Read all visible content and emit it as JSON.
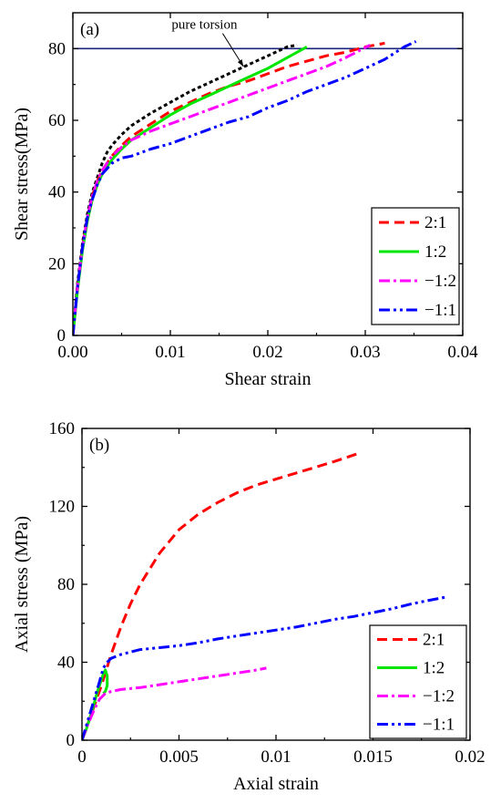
{
  "chart_data": [
    {
      "type": "line",
      "panel_label": "(a)",
      "xlabel": "Shear strain",
      "ylabel": "Shear stress(MPa)",
      "xlim": [
        0,
        0.04
      ],
      "ylim": [
        0,
        90
      ],
      "xticks": [
        0,
        0.01,
        0.02,
        0.03,
        0.04
      ],
      "xtick_labels": [
        "0.00",
        "0.01",
        "0.02",
        "0.03",
        "0.04"
      ],
      "yticks": [
        0,
        20,
        40,
        60,
        80
      ],
      "ytick_labels": [
        "0",
        "20",
        "40",
        "60",
        "80"
      ],
      "legend_position": "lower-right",
      "reference_line": {
        "y": 80,
        "color": "#1a237e"
      },
      "annotation": {
        "text": "pure torsion",
        "points_to": [
          0.0175,
          75
        ]
      },
      "series": [
        {
          "name": "",
          "legend": false,
          "color": "#000000",
          "dash": "dot",
          "x": [
            0,
            0.0005,
            0.001,
            0.0015,
            0.002,
            0.0025,
            0.003,
            0.0035,
            0.004,
            0.005,
            0.006,
            0.008,
            0.01,
            0.012,
            0.014,
            0.016,
            0.018,
            0.02,
            0.022,
            0.023
          ],
          "y": [
            0,
            15,
            26,
            34,
            40,
            44,
            48,
            51,
            53,
            56,
            58.5,
            62,
            65,
            68,
            70.5,
            73,
            75.5,
            78,
            80.5,
            81
          ]
        },
        {
          "name": "2:1",
          "color": "#ff0000",
          "dash": "dash",
          "x": [
            0,
            0.0005,
            0.001,
            0.0015,
            0.002,
            0.0025,
            0.003,
            0.004,
            0.005,
            0.006,
            0.008,
            0.01,
            0.012,
            0.014,
            0.016,
            0.018,
            0.02,
            0.022,
            0.024,
            0.026,
            0.028,
            0.03,
            0.032
          ],
          "y": [
            0,
            14,
            25,
            33,
            39,
            43,
            46,
            50,
            53,
            55.5,
            59,
            62.5,
            65,
            67.5,
            69.5,
            71,
            73,
            75,
            76.5,
            78,
            79,
            80.5,
            81.5
          ]
        },
        {
          "name": "1:2",
          "color": "#00e600",
          "dash": "solid",
          "x": [
            0,
            0.0005,
            0.001,
            0.0015,
            0.002,
            0.0025,
            0.003,
            0.004,
            0.005,
            0.006,
            0.008,
            0.01,
            0.012,
            0.014,
            0.016,
            0.018,
            0.02,
            0.022,
            0.024
          ],
          "y": [
            0,
            13,
            24,
            32,
            38,
            42,
            45,
            49,
            52,
            54.5,
            58,
            61.5,
            64.5,
            67,
            69.5,
            72,
            74.5,
            77.5,
            80.5
          ]
        },
        {
          "name": "−1:2",
          "color": "#ff00ff",
          "dash": "dashdot",
          "x": [
            0,
            0.0005,
            0.001,
            0.0015,
            0.002,
            0.0025,
            0.003,
            0.004,
            0.005,
            0.006,
            0.008,
            0.01,
            0.012,
            0.014,
            0.016,
            0.018,
            0.02,
            0.022,
            0.024,
            0.026,
            0.028,
            0.0305
          ],
          "y": [
            0,
            14,
            25,
            33,
            39,
            43,
            46,
            50,
            52.5,
            54.5,
            57,
            59,
            61,
            63,
            65,
            67,
            69,
            71,
            73,
            75,
            77.5,
            81
          ]
        },
        {
          "name": "−1:1",
          "color": "#0000ff",
          "dash": "dashdotdot",
          "x": [
            0,
            0.0005,
            0.001,
            0.0015,
            0.002,
            0.0025,
            0.003,
            0.004,
            0.005,
            0.006,
            0.008,
            0.01,
            0.012,
            0.014,
            0.016,
            0.018,
            0.02,
            0.022,
            0.024,
            0.026,
            0.028,
            0.03,
            0.032,
            0.034,
            0.0352
          ],
          "y": [
            0,
            14,
            25,
            33,
            38,
            42,
            45,
            48,
            49.5,
            50,
            52,
            53.5,
            55.5,
            57.5,
            59.5,
            61,
            63.5,
            65.5,
            68,
            70,
            72,
            74.5,
            77,
            80.5,
            82
          ]
        }
      ]
    },
    {
      "type": "line",
      "panel_label": "(b)",
      "xlabel": "Axial strain",
      "ylabel": "Axial stress (MPa)",
      "xlim": [
        0,
        0.02
      ],
      "ylim": [
        0,
        160
      ],
      "xticks": [
        0,
        0.005,
        0.01,
        0.015,
        0.02
      ],
      "xtick_labels": [
        "0",
        "0.005",
        "0.01",
        "0.015",
        "0.02"
      ],
      "yticks": [
        0,
        40,
        80,
        120,
        160
      ],
      "ytick_labels": [
        "0",
        "40",
        "80",
        "120",
        "160"
      ],
      "legend_position": "lower-right",
      "series": [
        {
          "name": "2:1",
          "color": "#ff0000",
          "dash": "dash",
          "x": [
            0,
            0.0005,
            0.001,
            0.0015,
            0.002,
            0.0025,
            0.003,
            0.004,
            0.005,
            0.006,
            0.007,
            0.008,
            0.009,
            0.01,
            0.011,
            0.012,
            0.013,
            0.0142
          ],
          "y": [
            0,
            14,
            28,
            44,
            58,
            70,
            80,
            96,
            108,
            116,
            122,
            127,
            131,
            134,
            137,
            140,
            143,
            147
          ]
        },
        {
          "name": "1:2",
          "color": "#00e600",
          "dash": "solid",
          "x": [
            0,
            0.0002,
            0.0004,
            0.0006,
            0.0008,
            0.001,
            0.0011,
            0.0012,
            0.0013,
            0.0013,
            0.0012,
            0.0011
          ],
          "y": [
            0,
            5,
            11,
            18,
            25,
            31,
            34,
            36,
            33,
            28,
            25,
            24
          ]
        },
        {
          "name": "−1:2",
          "color": "#ff00ff",
          "dash": "dashdot",
          "x": [
            0,
            0.0003,
            0.0006,
            0.0009,
            0.0012,
            0.0015,
            0.002,
            0.003,
            0.004,
            0.005,
            0.006,
            0.007,
            0.008,
            0.009,
            0.0095
          ],
          "y": [
            0,
            8,
            15,
            21,
            24,
            25,
            26,
            27,
            28.5,
            30,
            31.5,
            33,
            34.5,
            36,
            37
          ]
        },
        {
          "name": "−1:1",
          "color": "#0000ff",
          "dash": "dashdotdot",
          "x": [
            0,
            0.0003,
            0.0006,
            0.0009,
            0.0011,
            0.0013,
            0.0015,
            0.002,
            0.003,
            0.004,
            0.005,
            0.006,
            0.007,
            0.008,
            0.009,
            0.01,
            0.011,
            0.012,
            0.013,
            0.014,
            0.015,
            0.016,
            0.017,
            0.018,
            0.0188
          ],
          "y": [
            0,
            10,
            20,
            30,
            37,
            40,
            42,
            44,
            46.5,
            47.5,
            48.5,
            50,
            52,
            53.5,
            55,
            56.5,
            58,
            60,
            62,
            63.5,
            65.5,
            67.5,
            70,
            72,
            73.5
          ]
        }
      ]
    }
  ]
}
